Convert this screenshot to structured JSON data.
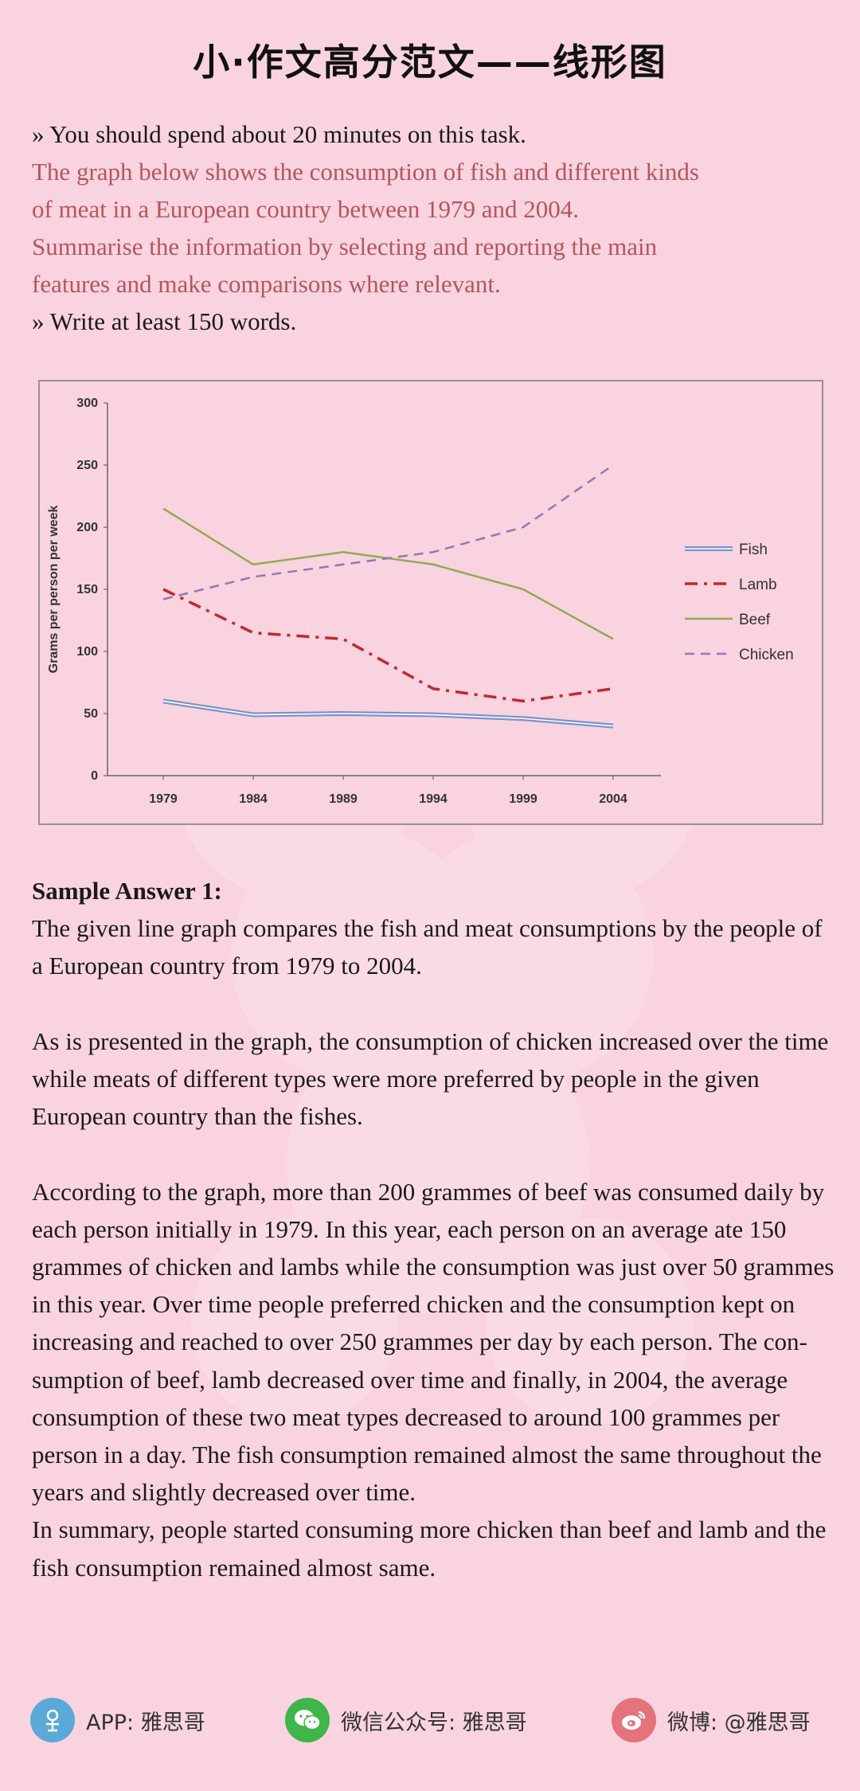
{
  "page": {
    "title": "小·作文高分范文——线形图"
  },
  "task": {
    "line1": "» You should spend about 20 minutes on this task.",
    "red1": "The graph below shows the consumption of fish and different kinds",
    "red2": "of meat in a European country between 1979 and 2004.",
    "red3": "Summarise the information by selecting and reporting the main",
    "red4": "features and make comparisons where relevant.",
    "line6": "» Write at least 150 words."
  },
  "chart_data": {
    "type": "line",
    "x": [
      "1979",
      "1984",
      "1989",
      "1994",
      "1999",
      "2004"
    ],
    "ylabel": "Grams per person per week",
    "ylim": [
      0,
      300
    ],
    "yticks": [
      "0",
      "50",
      "100",
      "150",
      "200",
      "250",
      "300"
    ],
    "grid": false,
    "legend_position": "right",
    "series": [
      {
        "name": "Fish",
        "values": [
          60,
          49,
          50,
          49,
          46,
          40
        ],
        "color": "#7a92cc",
        "style": "double-solid"
      },
      {
        "name": "Lamb",
        "values": [
          150,
          115,
          110,
          70,
          60,
          70
        ],
        "color": "#c0292f",
        "style": "dash-dot"
      },
      {
        "name": "Beef",
        "values": [
          215,
          170,
          180,
          170,
          150,
          110
        ],
        "color": "#93aa52",
        "style": "solid"
      },
      {
        "name": "Chicken",
        "values": [
          142,
          160,
          170,
          180,
          200,
          250
        ],
        "color": "#8f7ab3",
        "style": "dashed"
      }
    ]
  },
  "answer": {
    "heading": "Sample Answer 1:",
    "p1": "The given line graph compares the fish and meat consumptions by the people of a European country from 1979 to 2004.",
    "p2": "As is presented in the graph, the consumption of chicken increased over the time while meats of different types were more preferred by people in the given European country than the fishes.",
    "p3": "According to the graph, more than 200 grammes of beef was consumed daily by each person initially in 1979. In this year, each person on an average ate 150 grammes of chicken and lambs while the consumption was just over 50 grammes in this year. Over time people preferred chicken and the consumption kept on increasing and reached to over 250 grammes per day by each person. The con-sumption of beef, lamb decreased over time and finally, in 2004, the average consumption of these two meat types decreased to around 100 grammes per person in a day. The fish consumption remained almost the same throughout the years and slightly decreased over time.",
    "p4": "In summary, people started consuming more chicken than beef and lamb and the fish consumption remained almost same."
  },
  "footer": {
    "app": "APP: 雅思哥",
    "wechat": "微信公众号: 雅思哥",
    "weibo": "微博: @雅思哥",
    "app_color": "#5aa9d6",
    "wechat_color": "#3fb54a",
    "weibo_color": "#e4737c"
  }
}
